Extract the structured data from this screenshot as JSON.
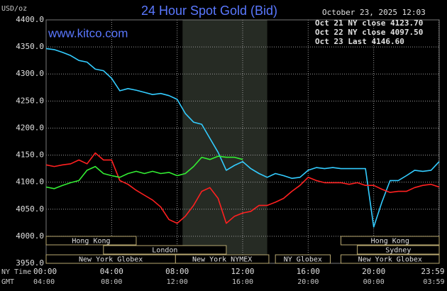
{
  "chart_data": {
    "type": "line",
    "title": "24 Hour Spot Gold (Bid)",
    "timestamp": "October 23, 2025 12:03",
    "y_label": "USD/oz",
    "watermark": "www.kitco.com",
    "x_row_labels": [
      "NY Time",
      "GMT"
    ],
    "xlim": [
      0,
      24
    ],
    "ylim": [
      3950,
      4400
    ],
    "grid": true,
    "legend": "top-right",
    "shaded_region": [
      8.33,
      13.5
    ],
    "yticks": [
      {
        "value": 3950,
        "label": "3950.0"
      },
      {
        "value": 4000,
        "label": "4000.0"
      },
      {
        "value": 4050,
        "label": "4050.0"
      },
      {
        "value": 4100,
        "label": "4100.0"
      },
      {
        "value": 4150,
        "label": "4150.0"
      },
      {
        "value": 4200,
        "label": "4200.0"
      },
      {
        "value": 4250,
        "label": "4250.0"
      },
      {
        "value": 4300,
        "label": "4300.0"
      },
      {
        "value": 4350,
        "label": "4350.0"
      },
      {
        "value": 4400,
        "label": "4400.0"
      }
    ],
    "xticks": [
      {
        "value": 0,
        "label": "00:00"
      },
      {
        "value": 4,
        "label": "04:00"
      },
      {
        "value": 8,
        "label": "08:00"
      },
      {
        "value": 12,
        "label": "12:00"
      },
      {
        "value": 16,
        "label": "16:00"
      },
      {
        "value": 20,
        "label": "20:00"
      },
      {
        "value": 23.98,
        "label": "23:59"
      }
    ],
    "x2ticks": [
      {
        "value": 0,
        "label": "04:00"
      },
      {
        "value": 4,
        "label": "08:00"
      },
      {
        "value": 8,
        "label": "12:00"
      },
      {
        "value": 12,
        "label": "16:00"
      },
      {
        "value": 16,
        "label": "20:00"
      },
      {
        "value": 20,
        "label": "00:00"
      },
      {
        "value": 23.98,
        "label": "03:59"
      }
    ],
    "sessions": [
      {
        "label": "Hong Kong",
        "start": 0,
        "end": 5.5,
        "row": 0
      },
      {
        "label": "Hong Kong",
        "start": 18,
        "end": 24,
        "row": 0
      },
      {
        "label": "London",
        "start": 3.5,
        "end": 11,
        "row": 1
      },
      {
        "label": "Sydney",
        "start": 19,
        "end": 24,
        "row": 1
      },
      {
        "label": "New York Globex",
        "start": 0,
        "end": 7.9,
        "row": 2
      },
      {
        "label": "New York NYMEX",
        "start": 7.9,
        "end": 13.6,
        "row": 2
      },
      {
        "label": "NY Globex",
        "start": 14,
        "end": 17.35,
        "row": 2
      },
      {
        "label": "New York Globex",
        "start": 18,
        "end": 24,
        "row": 2
      }
    ],
    "x": [
      0,
      0.5,
      1,
      1.5,
      2,
      2.5,
      3,
      3.5,
      4,
      4.5,
      5,
      5.5,
      6,
      6.5,
      7,
      7.5,
      8,
      8.5,
      9,
      9.5,
      10,
      10.5,
      11,
      11.5,
      12,
      12.5,
      13,
      13.5,
      14,
      14.5,
      15,
      15.5,
      16,
      16.5,
      17,
      17.5,
      18,
      18.5,
      19,
      19.5,
      20,
      20.5,
      21,
      21.5,
      22,
      22.5,
      23,
      23.5,
      24
    ],
    "series": [
      {
        "name": "Oct 21 NY close 4123.70",
        "color": "#33ccff",
        "values": [
          4347,
          4345,
          4340,
          4334,
          4325,
          4322,
          4309,
          4306,
          4292,
          4269,
          4273,
          4270,
          4266,
          4262,
          4264,
          4260,
          4253,
          4227,
          4211,
          4207,
          4181,
          4155,
          4122,
          4131,
          4138,
          4125,
          4116,
          4109,
          4116,
          4112,
          4107,
          4109,
          4122,
          4127,
          4125,
          4127,
          4125,
          4125,
          4125,
          4125,
          4017,
          4063,
          4103,
          4103,
          4112,
          4122,
          4120,
          4122,
          4138
        ]
      },
      {
        "name": "Oct 22 NY close 4097.50",
        "color": "#ff2020",
        "values": [
          4132,
          4129,
          4132,
          4134,
          4141,
          4134,
          4154,
          4141,
          4141,
          4103,
          4096,
          4085,
          4076,
          4067,
          4054,
          4031,
          4024,
          4037,
          4057,
          4083,
          4090,
          4070,
          4024,
          4037,
          4043,
          4046,
          4057,
          4057,
          4063,
          4070,
          4083,
          4094,
          4109,
          4103,
          4099,
          4099,
          4099,
          4096,
          4099,
          4094,
          4094,
          4087,
          4081,
          4083,
          4083,
          4090,
          4094,
          4096,
          4091
        ]
      },
      {
        "name": "Oct 23 Last 4146.60",
        "color": "#33ee33",
        "values": [
          4091,
          4088,
          4094,
          4099,
          4103,
          4122,
          4129,
          4116,
          4112,
          4109,
          4116,
          4120,
          4116,
          4120,
          4116,
          4118,
          4112,
          4116,
          4129,
          4146,
          4142,
          4148,
          4146,
          4146,
          4142,
          null,
          null,
          null,
          null,
          null,
          null,
          null,
          null,
          null,
          null,
          null,
          null,
          null,
          null,
          null,
          null,
          null,
          null,
          null,
          null,
          null,
          null,
          null,
          null
        ]
      }
    ]
  }
}
